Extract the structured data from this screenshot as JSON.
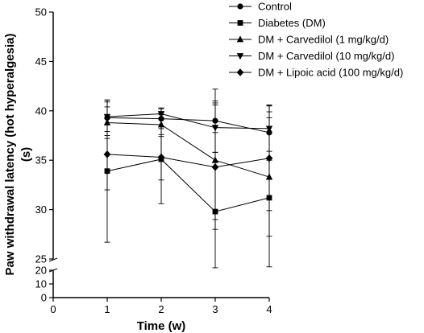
{
  "chart_data": {
    "type": "line",
    "xlabel": "Time (w)",
    "ylabel_lines": [
      "Paw withdrawal latency (hot hyperalgesia)",
      "(s)"
    ],
    "x_ticks": [
      0,
      1,
      2,
      3,
      4
    ],
    "xlim": [
      0,
      4
    ],
    "axis_break": true,
    "y_upper_range": [
      25,
      50
    ],
    "y_upper_ticks": [
      25,
      30,
      35,
      40,
      45,
      50
    ],
    "y_lower_range": [
      0,
      20
    ],
    "y_lower_ticks": [
      0,
      10,
      20
    ],
    "x": [
      1,
      2,
      3,
      4
    ],
    "series": [
      {
        "name": "Control",
        "marker": "circle",
        "values": [
          39.3,
          39.2,
          39.0,
          37.8
        ],
        "error": [
          1.8,
          1.0,
          3.2,
          2.8
        ]
      },
      {
        "name": "Diabetes (DM)",
        "marker": "square",
        "values": [
          33.9,
          35.1,
          29.8,
          31.2
        ],
        "error": [
          7.2,
          4.5,
          8.0,
          8.7
        ]
      },
      {
        "name": "DM + Carvedilol (1 mg/kg/d)",
        "marker": "triangle-up",
        "values": [
          38.8,
          38.6,
          35.0,
          33.3
        ],
        "error": [
          1.6,
          1.2,
          6.0,
          6.0
        ]
      },
      {
        "name": "DM + Carvedilol (10 mg/kg/d)",
        "marker": "triangle-down",
        "values": [
          39.4,
          39.7,
          38.3,
          38.2
        ],
        "error": [
          1.5,
          0.6,
          2.5,
          2.3
        ]
      },
      {
        "name": "DM + Lipoic acid (100 mg/kg/d)",
        "marker": "diamond",
        "values": [
          35.6,
          35.3,
          34.3,
          35.2
        ],
        "error": [
          3.6,
          2.3,
          6.3,
          5.3
        ]
      }
    ],
    "legend_position": "top-right",
    "grid": false
  }
}
